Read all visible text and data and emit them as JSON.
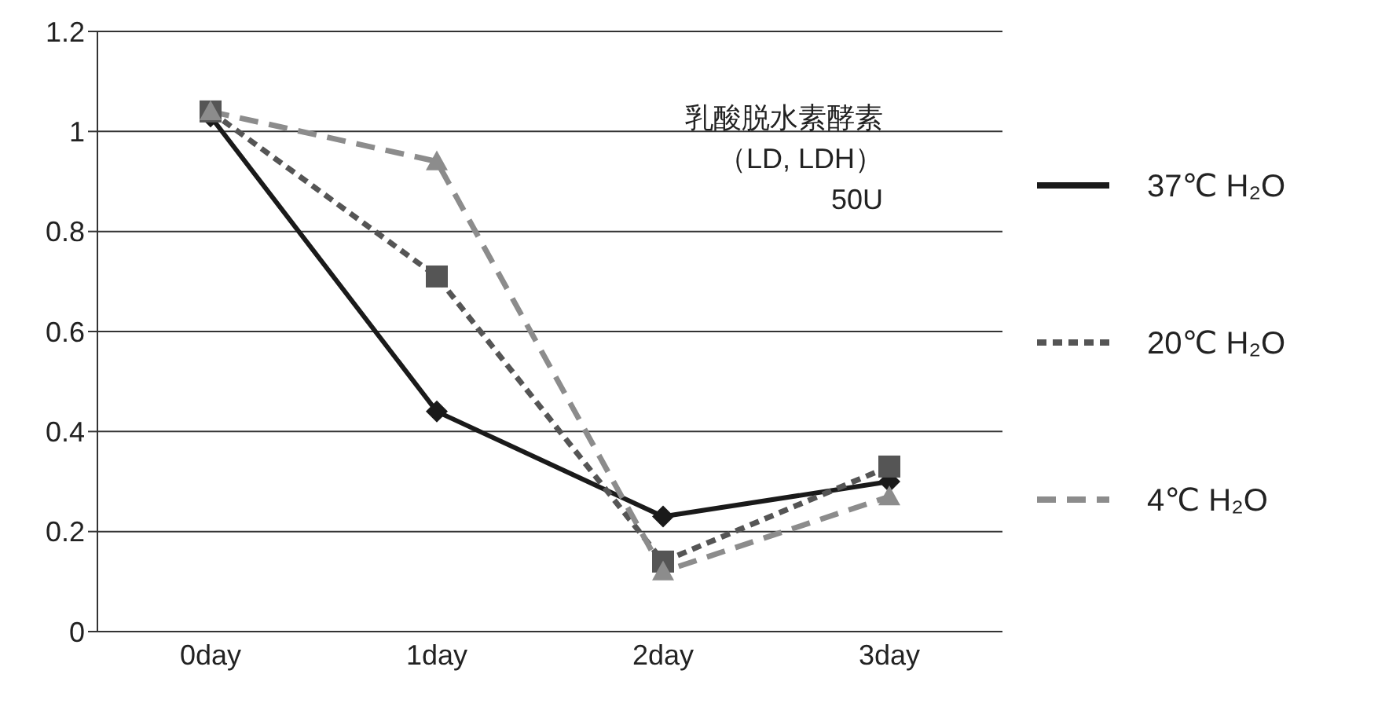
{
  "chart_data": {
    "type": "line",
    "categories": [
      "0day",
      "1day",
      "2day",
      "3day"
    ],
    "series": [
      {
        "name": "37℃ H₂O",
        "color": "#1a1a1a",
        "marker": "diamond",
        "line_style": "solid",
        "values": [
          1.03,
          0.44,
          0.23,
          0.3
        ]
      },
      {
        "name": "20℃ H₂O",
        "color": "#555555",
        "marker": "square",
        "line_style": "dotted",
        "values": [
          1.04,
          0.71,
          0.14,
          0.33
        ]
      },
      {
        "name": "4℃ H₂O",
        "color": "#8c8c8c",
        "marker": "triangle",
        "line_style": "dashed",
        "values": [
          1.04,
          0.94,
          0.12,
          0.27
        ]
      }
    ],
    "ylim": [
      0,
      1.2
    ],
    "yticks": [
      0,
      0.2,
      0.4,
      0.6,
      0.8,
      1,
      1.2
    ],
    "grid": "y",
    "legend": "right",
    "annotations": [
      "乳酸脱水素酵素",
      "（LD, LDH）",
      "50U"
    ]
  }
}
